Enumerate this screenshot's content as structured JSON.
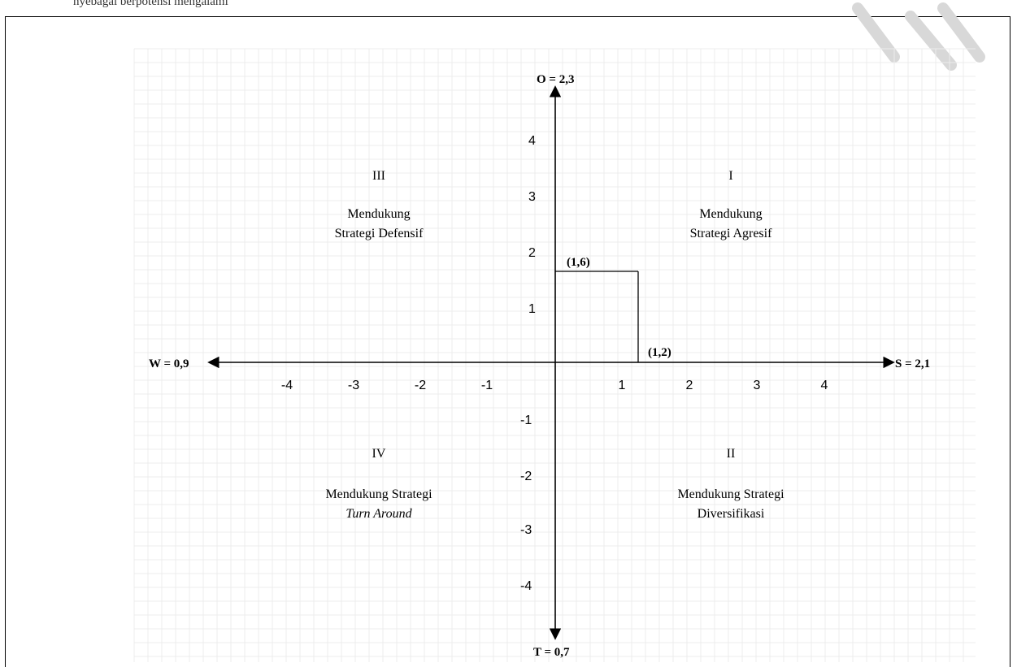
{
  "header": {
    "cropped_text": "nyebagai berpotensi mengalami"
  },
  "axes": {
    "y_top_label": "O = 2,3",
    "y_bottom_label": "T = 0,7",
    "x_left_label": "W = 0,9",
    "x_right_label": "S = 2,1",
    "x_ticks": [
      "-4",
      "-3",
      "-2",
      "-1",
      "1",
      "2",
      "3",
      "4"
    ],
    "y_ticks": [
      "4",
      "3",
      "2",
      "1",
      "-1",
      "-2",
      "-3",
      "-4"
    ]
  },
  "quadrants": {
    "q1": {
      "numeral": "I",
      "line1": "Mendukung",
      "line2": "Strategi Agresif"
    },
    "q2": {
      "numeral": "II",
      "line1": "Mendukung Strategi",
      "line2": "Diversifikasi"
    },
    "q3": {
      "numeral": "III",
      "line1": "Mendukung",
      "line2": "Strategi Defensif"
    },
    "q4": {
      "numeral": "IV",
      "line1": "Mendukung Strategi",
      "line2": "Turn Around"
    }
  },
  "point": {
    "label_y": "(1,6)",
    "label_x": "(1,2)",
    "x": 1.2,
    "y": 1.6
  },
  "colors": {
    "grid": "#ececec",
    "ink": "#000000",
    "watermark": "#d8d8d8"
  }
}
